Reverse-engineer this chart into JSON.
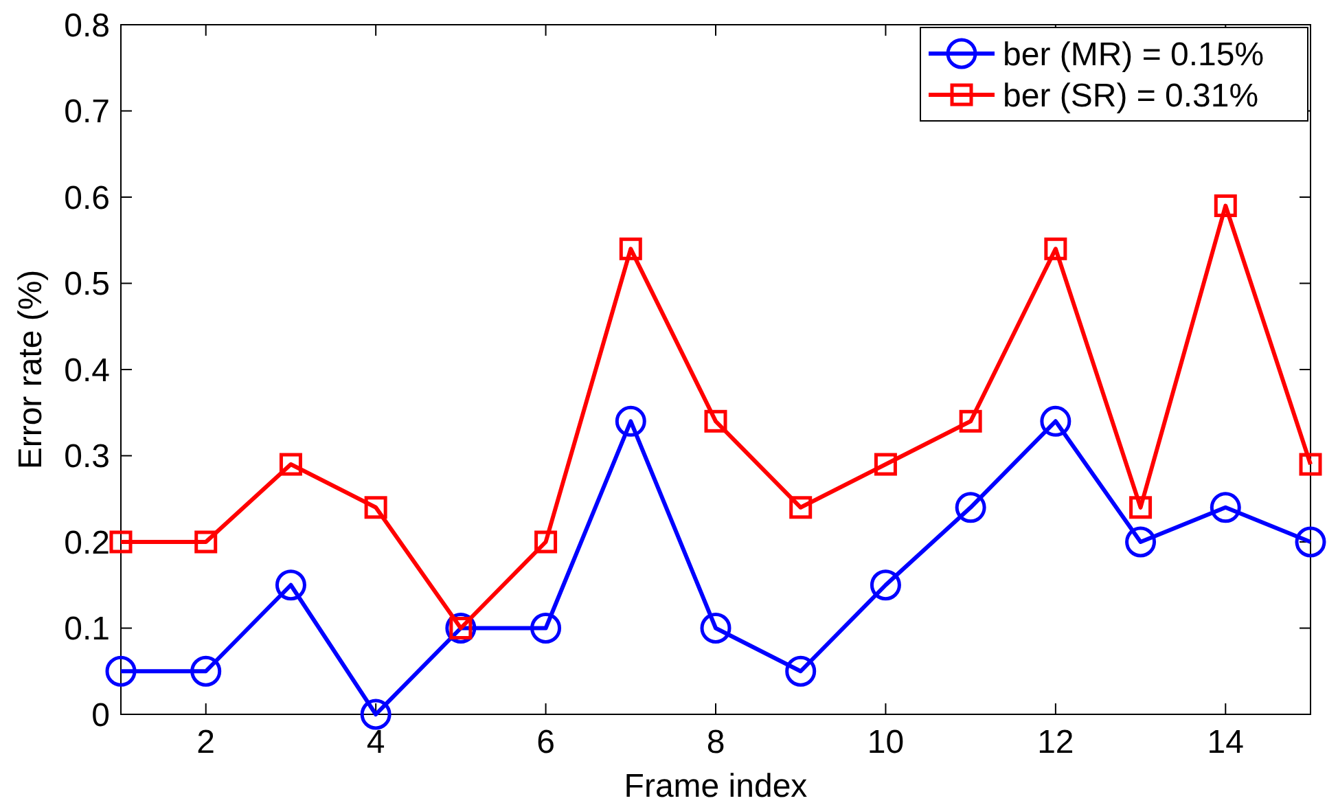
{
  "chart_data": {
    "type": "line",
    "xlabel": "Frame index",
    "ylabel": "Error rate (%)",
    "x": [
      1,
      2,
      3,
      4,
      5,
      6,
      7,
      8,
      9,
      10,
      11,
      12,
      13,
      14,
      15
    ],
    "series": [
      {
        "name": "ber (MR) = 0.15%",
        "color": "#0000ff",
        "marker": "circle",
        "values": [
          0.05,
          0.05,
          0.15,
          0,
          0.1,
          0.1,
          0.34,
          0.1,
          0.05,
          0.15,
          0.24,
          0.34,
          0.2,
          0.24,
          0.2
        ]
      },
      {
        "name": "ber (SR) = 0.31%",
        "color": "#ff0000",
        "marker": "square",
        "values": [
          0.2,
          0.2,
          0.29,
          0.24,
          0.1,
          0.2,
          0.54,
          0.34,
          0.24,
          0.29,
          0.34,
          0.54,
          0.24,
          0.59,
          0.29
        ]
      }
    ],
    "xlim": [
      1,
      15
    ],
    "xticks": [
      2,
      4,
      6,
      8,
      10,
      12,
      14
    ],
    "ylim": [
      0,
      0.8
    ],
    "yticks": [
      0,
      0.1,
      0.2,
      0.3,
      0.4,
      0.5,
      0.6,
      0.7,
      0.8
    ],
    "grid": false,
    "legend": "top right",
    "line_style": "solid"
  }
}
